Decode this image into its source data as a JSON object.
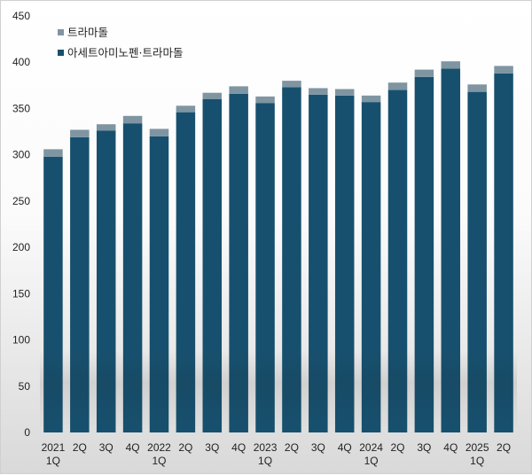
{
  "chart_data": {
    "type": "bar",
    "stacked": true,
    "categories": [
      [
        "2021",
        "1Q"
      ],
      [
        "2Q"
      ],
      [
        "3Q"
      ],
      [
        "4Q"
      ],
      [
        "2022",
        "1Q"
      ],
      [
        "2Q"
      ],
      [
        "3Q"
      ],
      [
        "4Q"
      ],
      [
        "2023",
        "1Q"
      ],
      [
        "2Q"
      ],
      [
        "3Q"
      ],
      [
        "4Q"
      ],
      [
        "2024",
        "1Q"
      ],
      [
        "2Q"
      ],
      [
        "3Q"
      ],
      [
        "4Q"
      ],
      [
        "2025",
        "1Q"
      ],
      [
        "2Q"
      ]
    ],
    "series": [
      {
        "name": "아세트아미노펜·트라마돌",
        "color": "#17506e",
        "values": [
          298,
          319,
          326,
          334,
          320,
          346,
          360,
          366,
          356,
          373,
          365,
          364,
          357,
          370,
          384,
          393,
          368,
          388
        ]
      },
      {
        "name": "트라마돌",
        "color": "#7f95a2",
        "values": [
          8,
          8,
          7,
          8,
          8,
          7,
          7,
          8,
          7,
          7,
          7,
          7,
          7,
          8,
          8,
          8,
          8,
          8
        ]
      }
    ],
    "legend_order": [
      1,
      0
    ],
    "legend_position": "top-left",
    "ylim": [
      0,
      450
    ],
    "yticks": [
      0,
      50,
      100,
      150,
      200,
      250,
      300,
      350,
      400,
      450
    ],
    "grid": false
  }
}
